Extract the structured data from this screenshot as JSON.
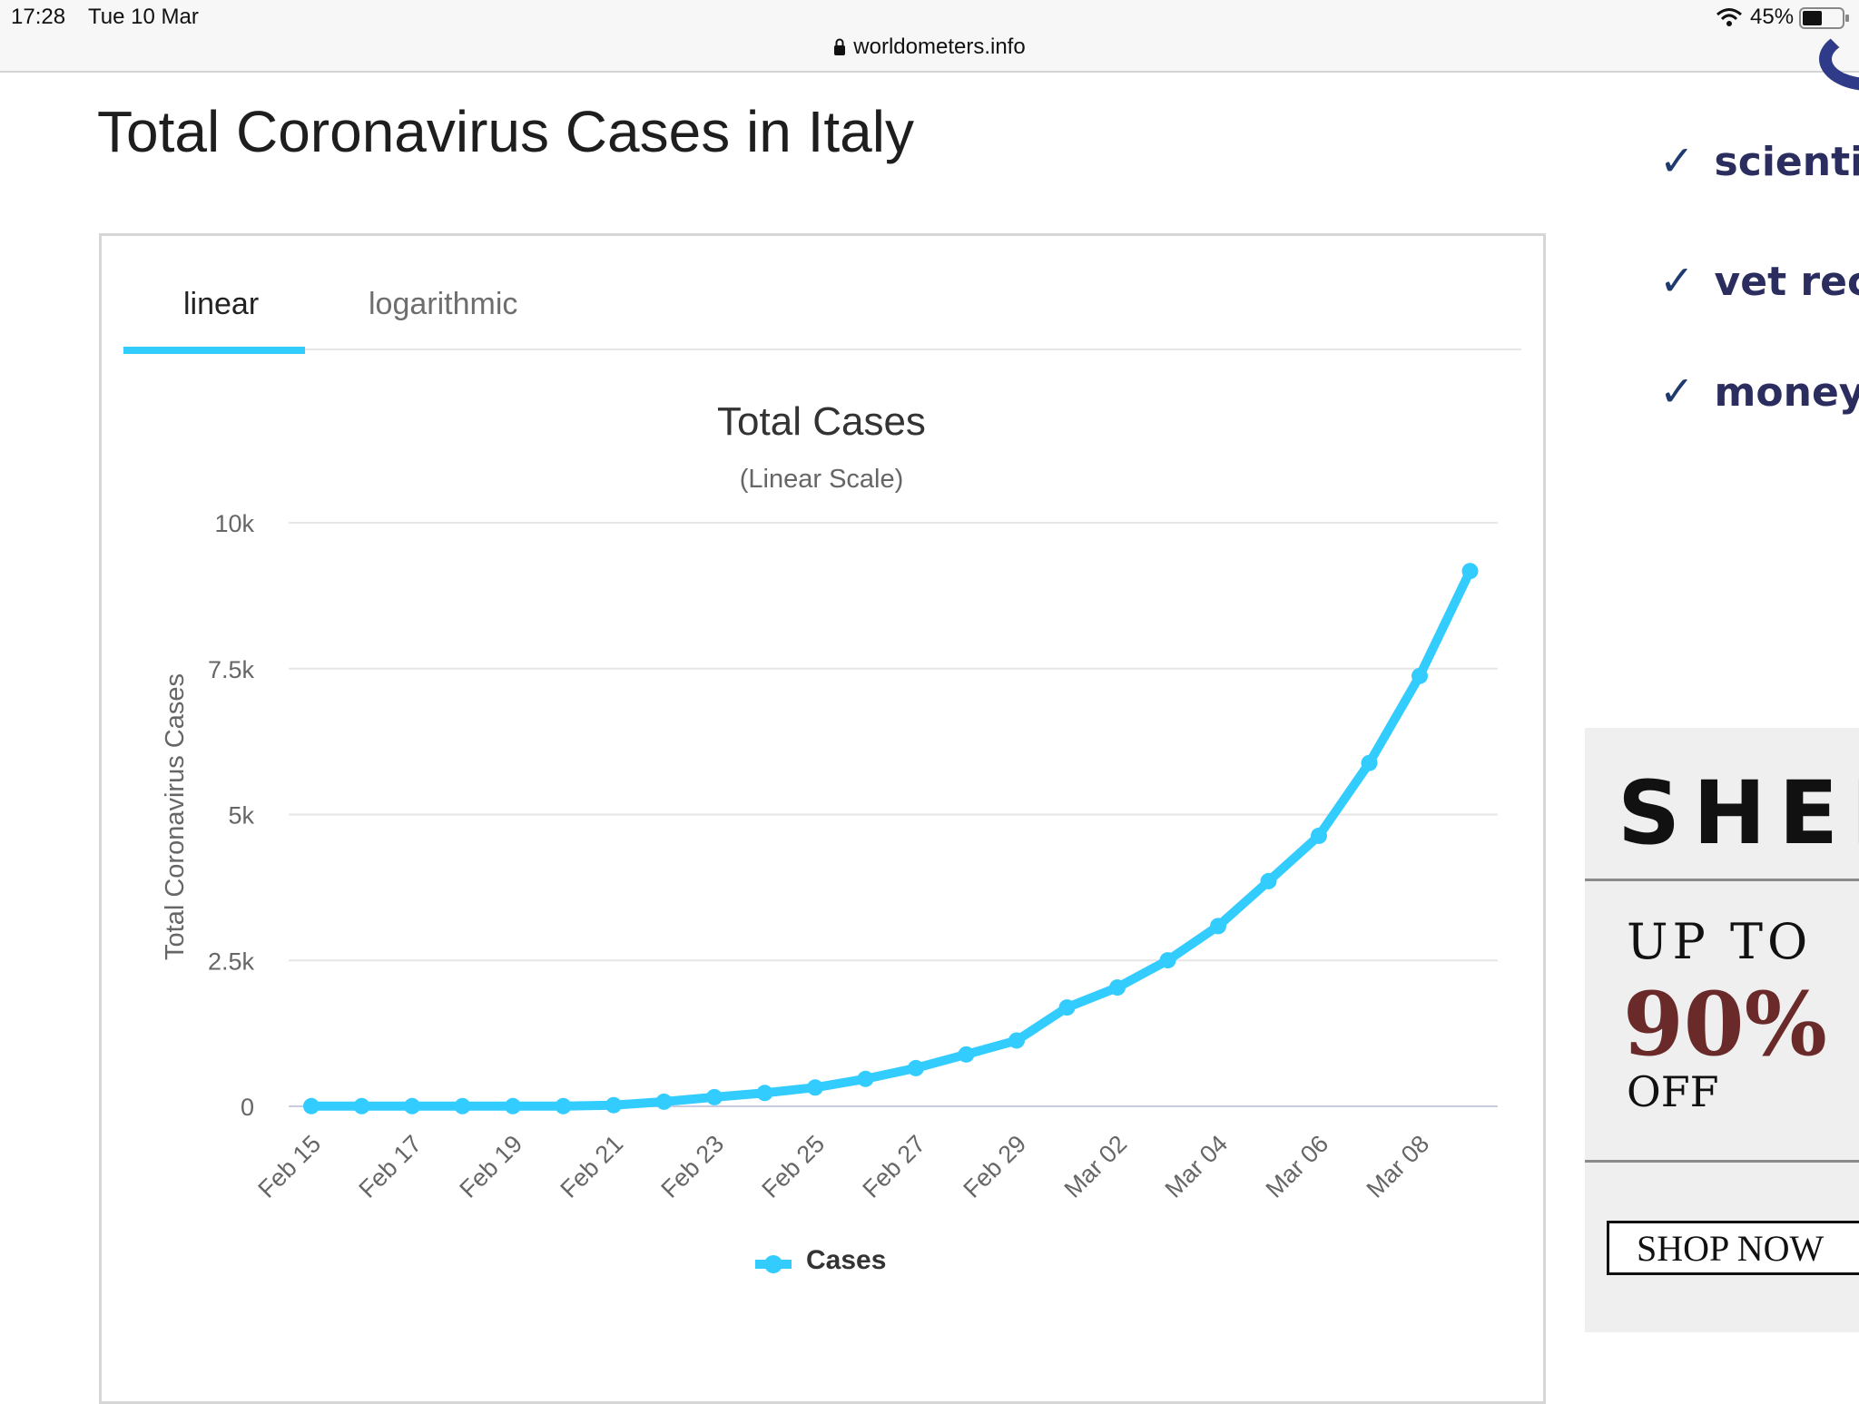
{
  "status_bar": {
    "time": "17:28",
    "date": "Tue 10 Mar",
    "url": "worldometers.info",
    "battery": "45%",
    "icons": [
      "lock-icon",
      "wifi-icon",
      "battery-icon"
    ]
  },
  "page": {
    "heading": "Total Coronavirus Cases in Italy"
  },
  "tabs": [
    {
      "label": "linear",
      "active": true
    },
    {
      "label": "logarithmic",
      "active": false
    }
  ],
  "colors": {
    "accent": "#33ccff",
    "series": "#33ccff",
    "grid": "#e6e6e6",
    "heading": "#1e1e1e",
    "ad_price": "#6b2a2a",
    "sidebar_text": "#2b2d5e"
  },
  "chart_data": {
    "type": "line",
    "title": "Total Cases",
    "subtitle": "(Linear Scale)",
    "xlabel": "",
    "ylabel": "Total Coronavirus Cases",
    "ylim": [
      0,
      10000
    ],
    "y_ticks": [
      {
        "value": 0,
        "label": "0"
      },
      {
        "value": 2500,
        "label": "2.5k"
      },
      {
        "value": 5000,
        "label": "5k"
      },
      {
        "value": 7500,
        "label": "7.5k"
      },
      {
        "value": 10000,
        "label": "10k"
      }
    ],
    "x_tick_labels": [
      "Feb 15",
      "Feb 17",
      "Feb 19",
      "Feb 21",
      "Feb 23",
      "Feb 25",
      "Feb 27",
      "Feb 29",
      "Mar 02",
      "Mar 04",
      "Mar 06",
      "Mar 08"
    ],
    "categories": [
      "Feb 15",
      "Feb 16",
      "Feb 17",
      "Feb 18",
      "Feb 19",
      "Feb 20",
      "Feb 21",
      "Feb 22",
      "Feb 23",
      "Feb 24",
      "Feb 25",
      "Feb 26",
      "Feb 27",
      "Feb 28",
      "Feb 29",
      "Mar 01",
      "Mar 02",
      "Mar 03",
      "Mar 04",
      "Mar 05",
      "Mar 06",
      "Mar 07",
      "Mar 08",
      "Mar 09"
    ],
    "grid": true,
    "legend": "bottom-center",
    "series": [
      {
        "name": "Cases",
        "values": [
          3,
          3,
          3,
          3,
          3,
          3,
          20,
          79,
          157,
          229,
          322,
          470,
          655,
          889,
          1128,
          1694,
          2036,
          2502,
          3089,
          3858,
          4636,
          5883,
          7375,
          9172
        ]
      }
    ]
  },
  "sidebar": {
    "features": [
      {
        "label": "scientifi",
        "icon": "checkmark-icon"
      },
      {
        "label": "vet reco",
        "icon": "checkmark-icon"
      },
      {
        "label": "money b",
        "icon": "checkmark-icon"
      }
    ],
    "ad": {
      "brand": "SHEI",
      "line1": "UP TO",
      "discount": "90%",
      "line2": "OFF",
      "button": "SHOP NOW"
    }
  }
}
